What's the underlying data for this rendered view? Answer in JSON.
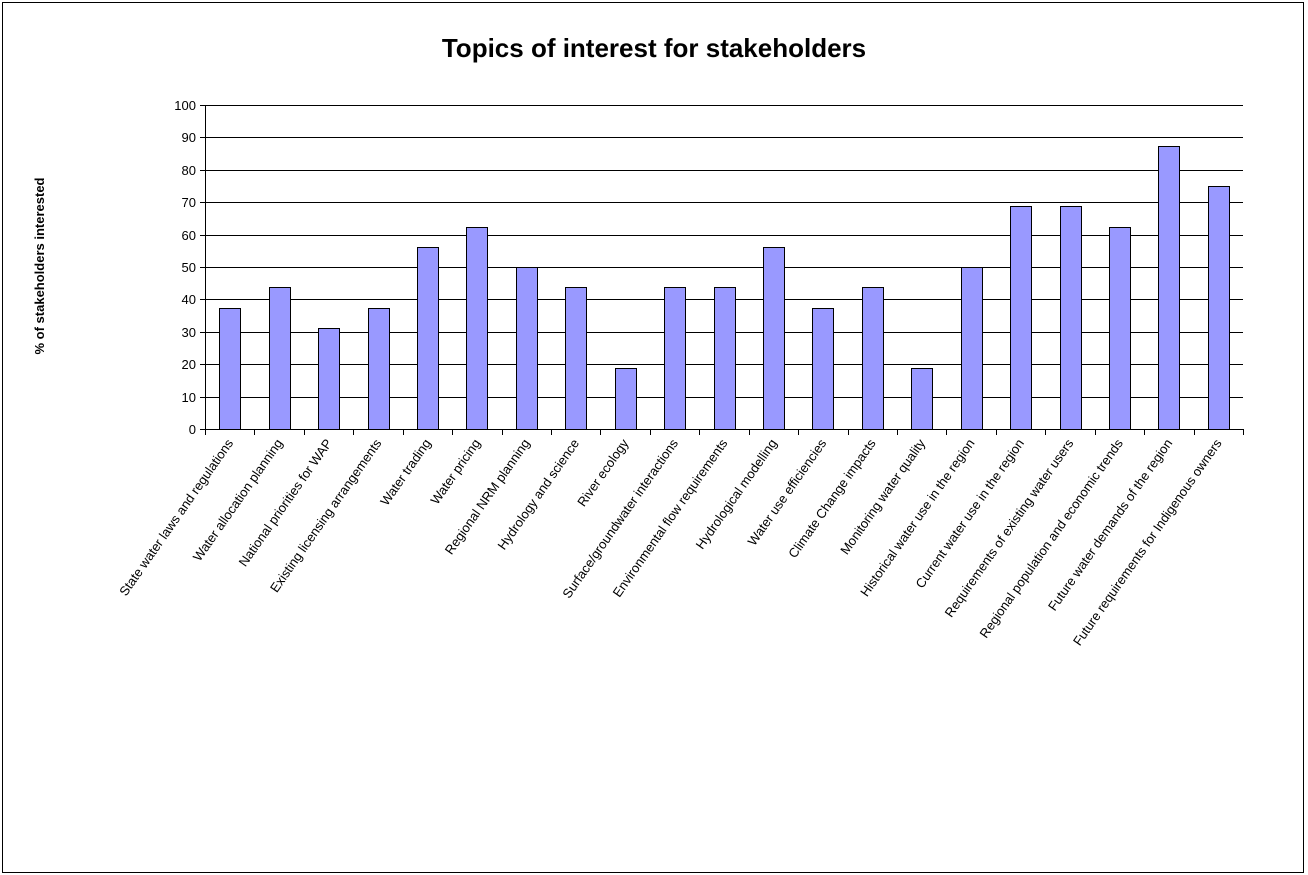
{
  "chart_data": {
    "type": "bar",
    "title": "Topics of interest for stakeholders",
    "xlabel": "",
    "ylabel": "% of stakeholders interested",
    "ylim": [
      0,
      100
    ],
    "ytick_step": 10,
    "grid": true,
    "bar_color": "#9999ff",
    "categories": [
      "State water laws and regulations",
      "Water allocation planning",
      "National priorities for WAP",
      "Existing licensing arrangements",
      "Water trading",
      "Water pricing",
      "Regional NRM planning",
      "Hydrology and science",
      "River ecology",
      "Surface/groundwater interactions",
      "Environmental flow requirements",
      "Hydrological modelling",
      "Water use efficiencies",
      "Climate Change impacts",
      "Monitoring water quality",
      "Historical water use in the region",
      "Current water use in the region",
      "Requirements of existing water users",
      "Regional population and economic trends",
      "Future water demands of the region",
      "Future requirements for Indigenous owners"
    ],
    "values": [
      37.5,
      43.75,
      31.25,
      37.5,
      56.25,
      62.5,
      50,
      43.75,
      18.75,
      43.75,
      43.75,
      56.25,
      37.5,
      43.75,
      18.75,
      50,
      68.75,
      68.75,
      62.5,
      87.5,
      75
    ]
  }
}
